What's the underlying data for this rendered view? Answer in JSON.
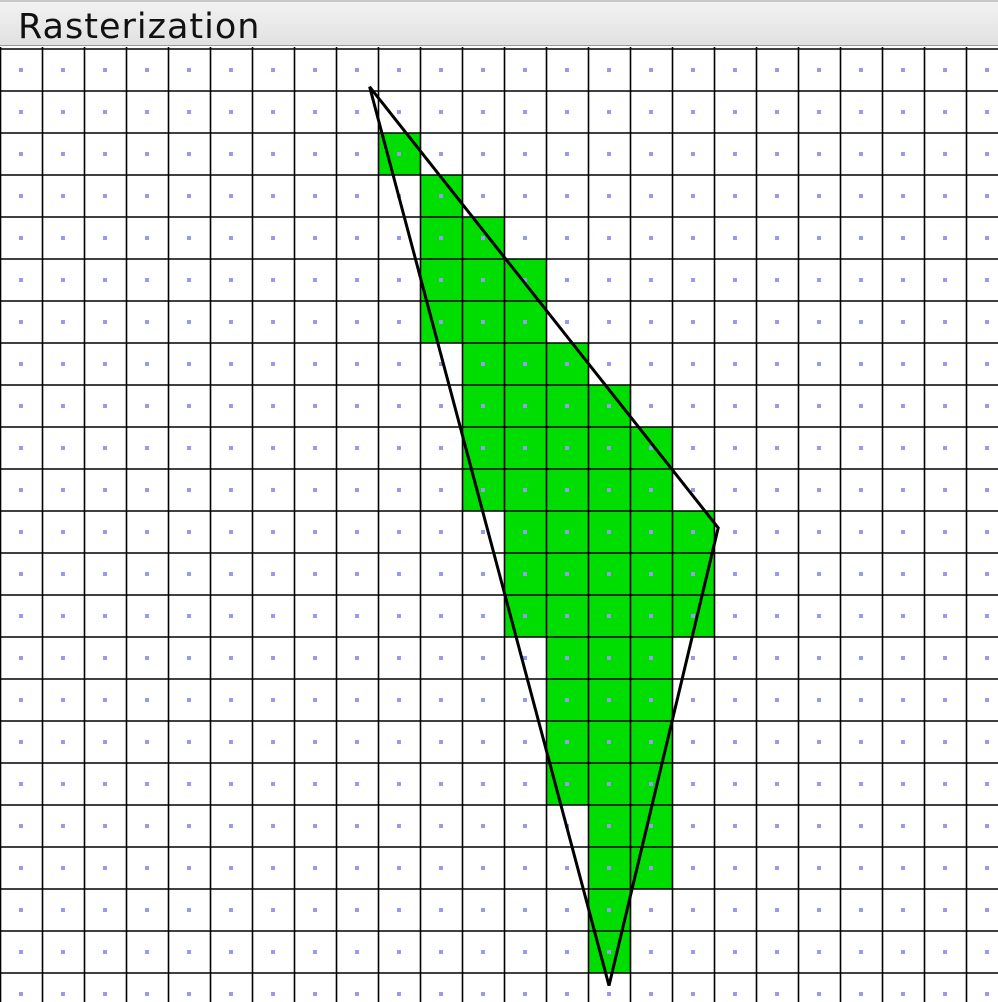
{
  "window": {
    "title": "Rasterization"
  },
  "colors": {
    "grid_line": "#000000",
    "sample_dot": "#9999ee",
    "covered_fill": "#00dd00",
    "triangle_edge": "#000000",
    "background": "#ffffff"
  },
  "raster": {
    "columns": 24,
    "rows": 23,
    "triangle": [
      [
        8.8,
        0.9
      ],
      [
        17.1,
        11.4
      ],
      [
        14.5,
        22.3
      ]
    ],
    "covered_cells": [
      [
        2,
        9
      ],
      [
        3,
        10
      ],
      [
        4,
        10
      ],
      [
        4,
        11
      ],
      [
        5,
        10
      ],
      [
        5,
        11
      ],
      [
        5,
        12
      ],
      [
        6,
        10
      ],
      [
        6,
        11
      ],
      [
        6,
        12
      ],
      [
        7,
        11
      ],
      [
        7,
        12
      ],
      [
        7,
        13
      ],
      [
        8,
        11
      ],
      [
        8,
        12
      ],
      [
        8,
        13
      ],
      [
        8,
        14
      ],
      [
        9,
        11
      ],
      [
        9,
        12
      ],
      [
        9,
        13
      ],
      [
        9,
        14
      ],
      [
        9,
        15
      ],
      [
        10,
        11
      ],
      [
        10,
        12
      ],
      [
        10,
        13
      ],
      [
        10,
        14
      ],
      [
        10,
        15
      ],
      [
        11,
        12
      ],
      [
        11,
        13
      ],
      [
        11,
        14
      ],
      [
        11,
        15
      ],
      [
        11,
        16
      ],
      [
        12,
        12
      ],
      [
        12,
        13
      ],
      [
        12,
        14
      ],
      [
        12,
        15
      ],
      [
        12,
        16
      ],
      [
        13,
        12
      ],
      [
        13,
        13
      ],
      [
        13,
        14
      ],
      [
        13,
        15
      ],
      [
        13,
        16
      ],
      [
        14,
        13
      ],
      [
        14,
        14
      ],
      [
        14,
        15
      ],
      [
        15,
        13
      ],
      [
        15,
        14
      ],
      [
        15,
        15
      ],
      [
        16,
        13
      ],
      [
        16,
        14
      ],
      [
        16,
        15
      ],
      [
        17,
        13
      ],
      [
        17,
        14
      ],
      [
        17,
        15
      ],
      [
        18,
        14
      ],
      [
        18,
        15
      ],
      [
        19,
        14
      ],
      [
        19,
        15
      ],
      [
        20,
        14
      ],
      [
        21,
        14
      ]
    ]
  }
}
